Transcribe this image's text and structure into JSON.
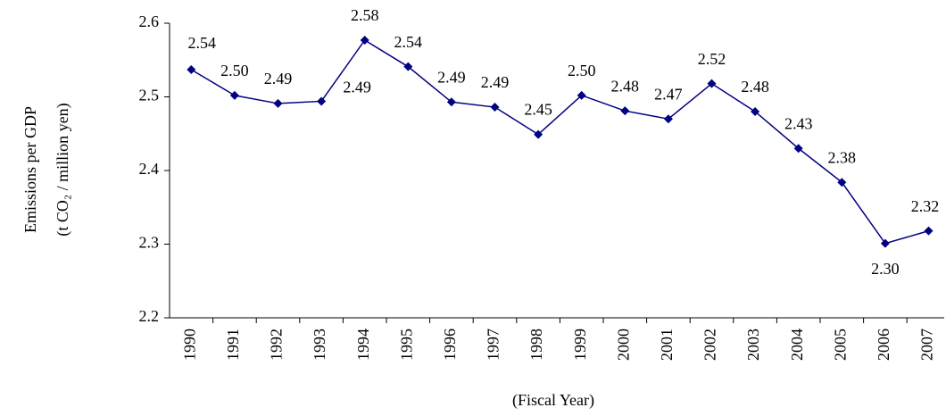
{
  "chart_data": {
    "type": "line",
    "y_label": [
      "Emissions per GDP",
      "(t CO₂ / million yen)"
    ],
    "x_label": "(Fiscal Year)",
    "categories": [
      "1990",
      "1991",
      "1992",
      "1993",
      "1994",
      "1995",
      "1996",
      "1997",
      "1998",
      "1999",
      "2000",
      "2001",
      "2002",
      "2003",
      "2004",
      "2005",
      "2006",
      "2007"
    ],
    "series": [
      {
        "color": "#000080",
        "values": [
          2.537,
          2.502,
          2.491,
          2.494,
          2.577,
          2.541,
          2.493,
          2.486,
          2.449,
          2.502,
          2.481,
          2.47,
          2.518,
          2.48,
          2.43,
          2.384,
          2.301,
          2.318
        ],
        "value_labels": [
          "2.54",
          "2.50",
          "2.49",
          "2.49",
          "2.58",
          "2.54",
          "2.49",
          "2.49",
          "2.45",
          "2.50",
          "2.48",
          "2.47",
          "2.52",
          "2.48",
          "2.43",
          "2.38",
          "2.30",
          "2.32"
        ]
      }
    ],
    "ylim": [
      2.2,
      2.6
    ],
    "yticks": [
      2.2,
      2.3,
      2.4,
      2.5,
      2.6
    ],
    "grid": false
  }
}
